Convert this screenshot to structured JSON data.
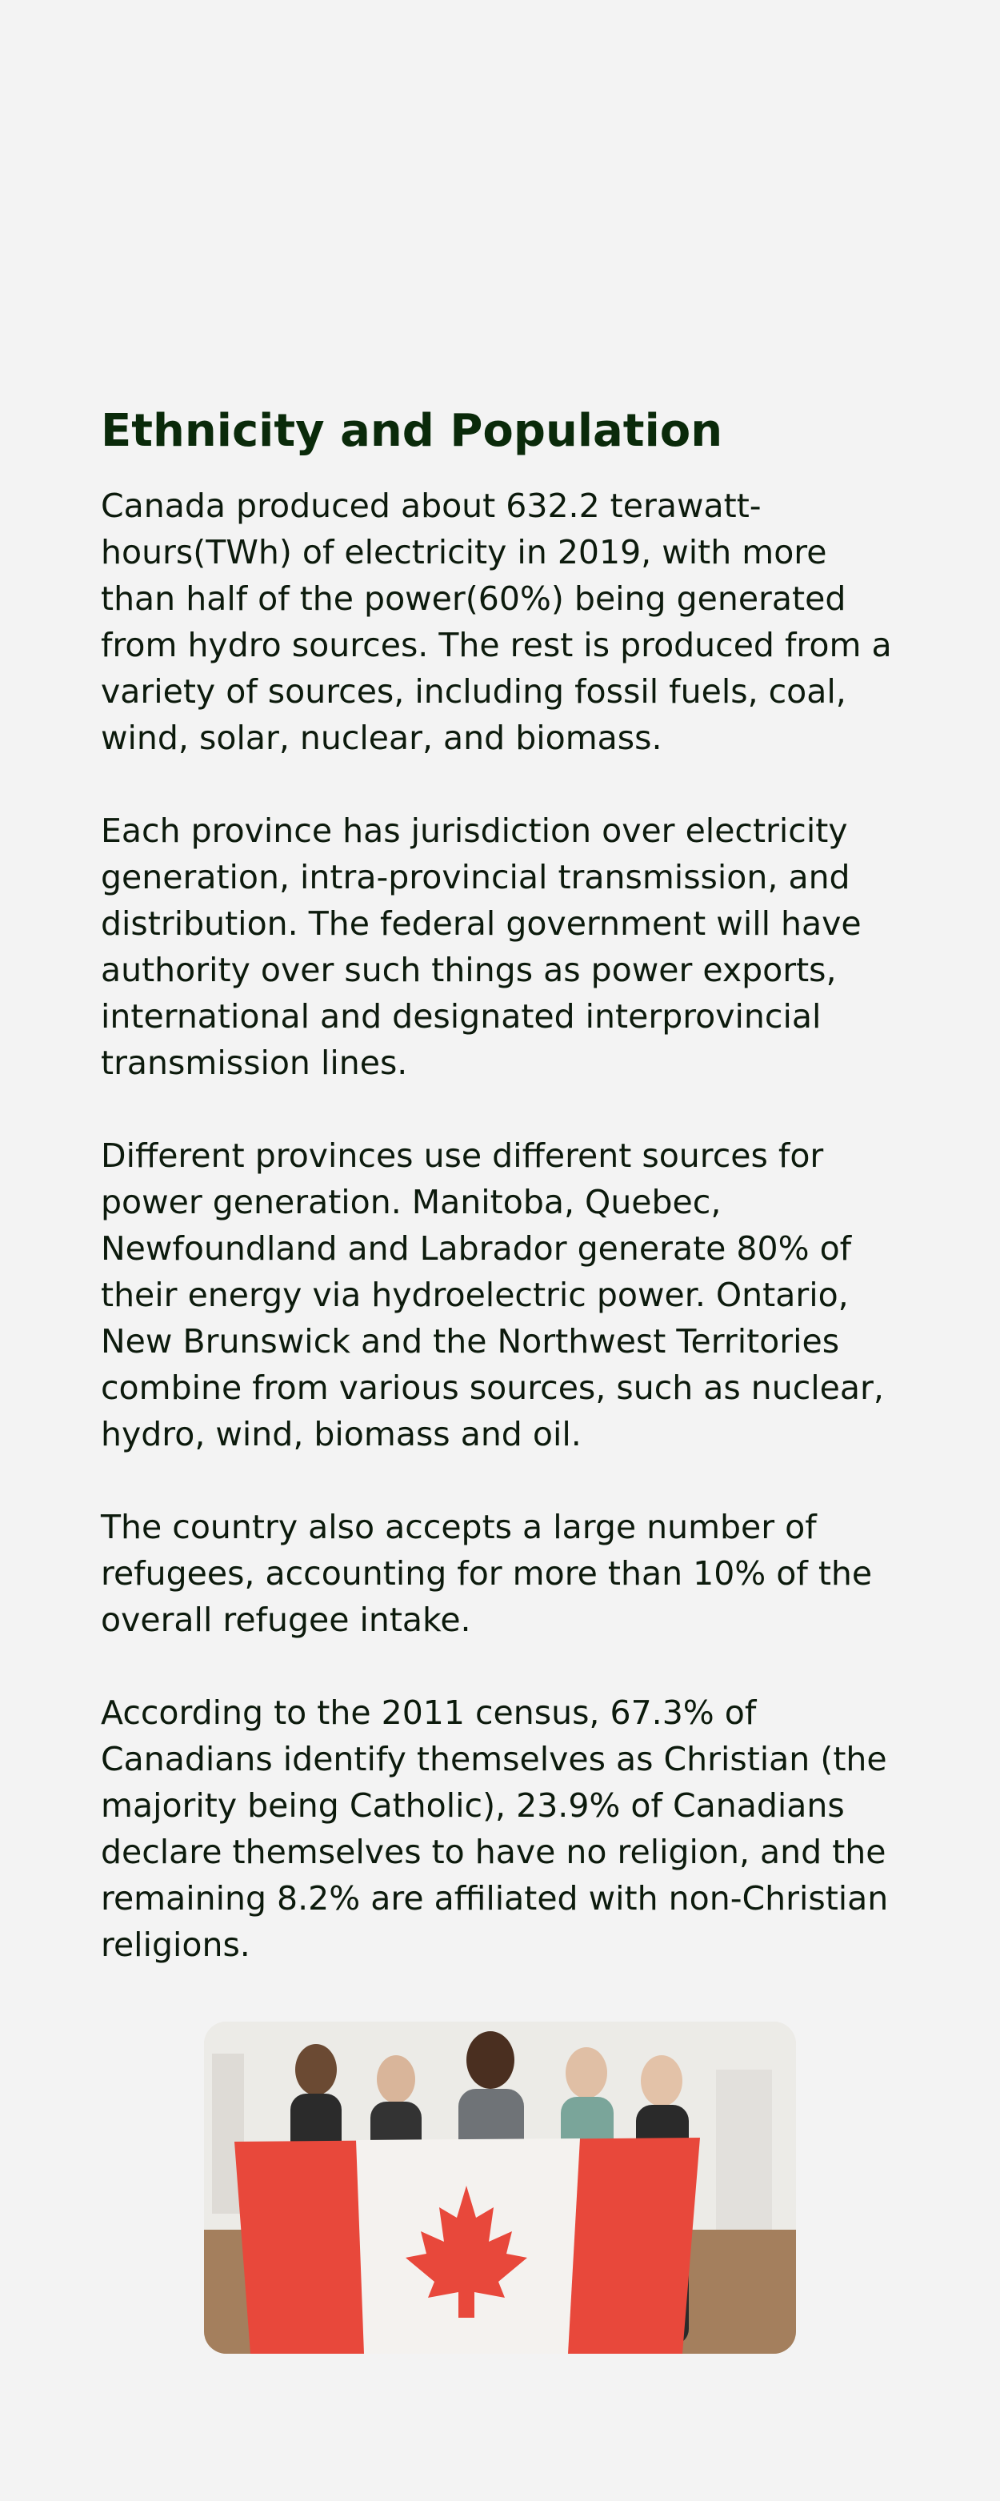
{
  "article": {
    "title": "Ethnicity and Population",
    "paragraphs": [
      "Canada produced about 632.2 terawatt-hours(TWh) of electricity in 2019, with more than half of the power(60%) being generated from hydro sources. The rest is produced from a variety of sources, including fossil fuels, coal, wind, solar, nuclear, and biomass.",
      "Each province has jurisdiction over electricity generation, intra-provincial transmission, and distribution. The federal government will have authority over such things as power exports, international and designated interprovincial transmission lines.",
      "Different provinces use different sources for power generation. Manitoba, Quebec, Newfoundland and Labrador generate 80% of their energy via hydroelectric power. Ontario, New Brunswick and the Northwest Territories combine from various sources, such as nuclear, hydro, wind, biomass and oil.",
      "The country also accepts a large number of refugees, accounting for more than 10% of the overall refugee intake.",
      "According to the 2011 census, 67.3% of Canadians identify themselves as Christian (the majority being Catholic), 23.9% of Canadians declare themselves to have no religion, and the remaining 8.2% are affiliated with non-Christian religions."
    ]
  },
  "photo": {
    "flag_red": "#e8483b",
    "flag_white": "#f4f2ef",
    "floor": "#a47f5d"
  }
}
